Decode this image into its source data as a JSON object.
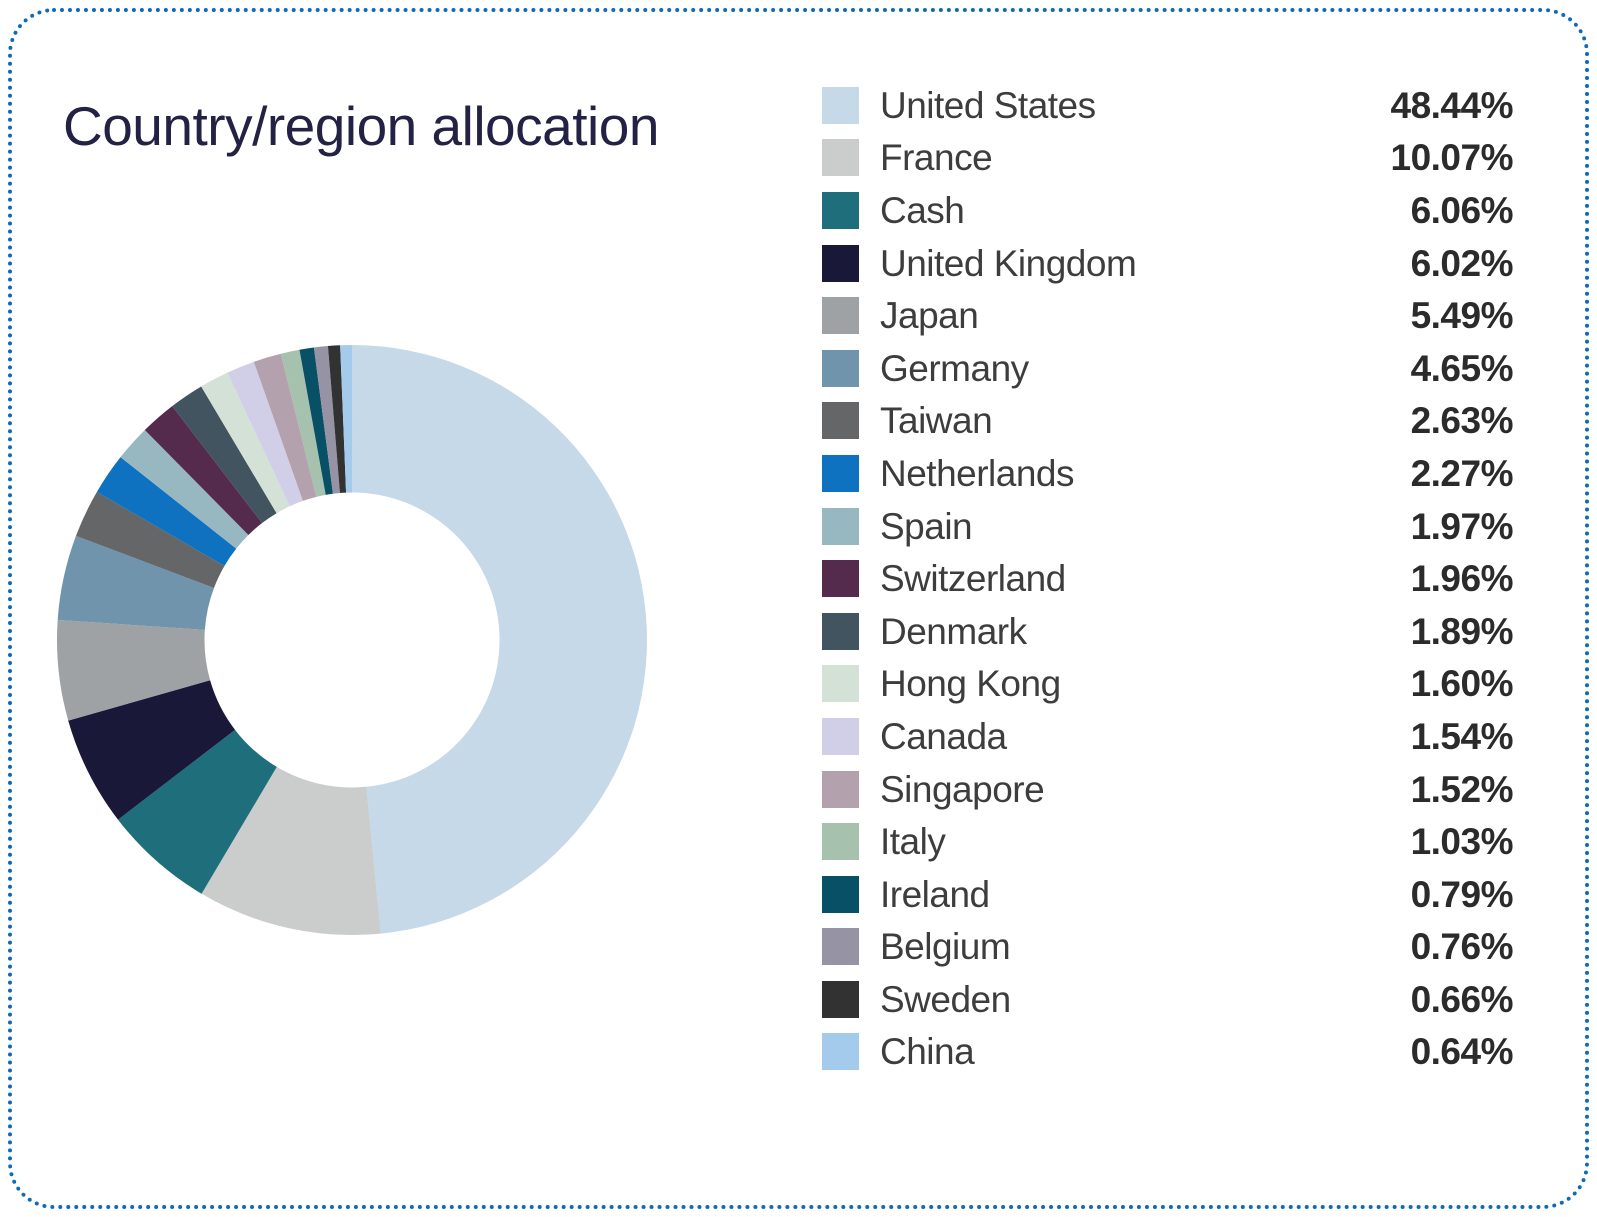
{
  "card": {
    "title": "Country/region allocation"
  },
  "style": {
    "border_color": "#0f6ab8",
    "title_color": "#232144",
    "background": "#ffffff"
  },
  "legend": {
    "items": [
      {
        "label": "United States",
        "value": "48.44%",
        "color": "#c5d9e8"
      },
      {
        "label": "France",
        "value": "10.07%",
        "color": "#cbcccc"
      },
      {
        "label": "Cash",
        "value": "6.06%",
        "color": "#1f6e7c"
      },
      {
        "label": "United Kingdom",
        "value": "6.02%",
        "color": "#1a1838"
      },
      {
        "label": "Japan",
        "value": "5.49%",
        "color": "#9fa2a5"
      },
      {
        "label": "Germany",
        "value": "4.65%",
        "color": "#6f94ab"
      },
      {
        "label": "Taiwan",
        "value": "2.63%",
        "color": "#656668"
      },
      {
        "label": "Netherlands",
        "value": "2.27%",
        "color": "#0f72c1"
      },
      {
        "label": "Spain",
        "value": "1.97%",
        "color": "#98b8c1"
      },
      {
        "label": "Switzerland",
        "value": "1.96%",
        "color": "#542b4d"
      },
      {
        "label": "Denmark",
        "value": "1.89%",
        "color": "#42545f"
      },
      {
        "label": "Hong Kong",
        "value": "1.60%",
        "color": "#d4e1d6"
      },
      {
        "label": "Canada",
        "value": "1.54%",
        "color": "#d1cfe7"
      },
      {
        "label": "Singapore",
        "value": "1.52%",
        "color": "#b3a2ae"
      },
      {
        "label": "Italy",
        "value": "1.03%",
        "color": "#a6c2ae"
      },
      {
        "label": "Ireland",
        "value": "0.79%",
        "color": "#075065"
      },
      {
        "label": "Belgium",
        "value": "0.76%",
        "color": "#9693a4"
      },
      {
        "label": "Sweden",
        "value": "0.66%",
        "color": "#323233"
      },
      {
        "label": "China",
        "value": "0.64%",
        "color": "#a4cbeb"
      }
    ]
  },
  "chart_data": {
    "type": "pie",
    "subtype": "donut",
    "title": "Country/region allocation",
    "categories": [
      "United States",
      "France",
      "Cash",
      "United Kingdom",
      "Japan",
      "Germany",
      "Taiwan",
      "Netherlands",
      "Spain",
      "Switzerland",
      "Denmark",
      "Hong Kong",
      "Canada",
      "Singapore",
      "Italy",
      "Ireland",
      "Belgium",
      "Sweden",
      "China"
    ],
    "values": [
      48.44,
      10.07,
      6.06,
      6.02,
      5.49,
      4.65,
      2.63,
      2.27,
      1.97,
      1.96,
      1.89,
      1.6,
      1.54,
      1.52,
      1.03,
      0.79,
      0.76,
      0.66,
      0.64
    ],
    "colors": [
      "#c5d9e8",
      "#cbcccc",
      "#1f6e7c",
      "#1a1838",
      "#9fa2a5",
      "#6f94ab",
      "#656668",
      "#0f72c1",
      "#98b8c1",
      "#542b4d",
      "#42545f",
      "#d4e1d6",
      "#d1cfe7",
      "#b3a2ae",
      "#a6c2ae",
      "#075065",
      "#9693a4",
      "#323233",
      "#a4cbeb"
    ],
    "value_suffix": "%",
    "start_angle": "12-oclock",
    "direction": "clockwise",
    "inner_radius_ratio": 0.5,
    "legend_position": "right",
    "data_labels": false
  }
}
